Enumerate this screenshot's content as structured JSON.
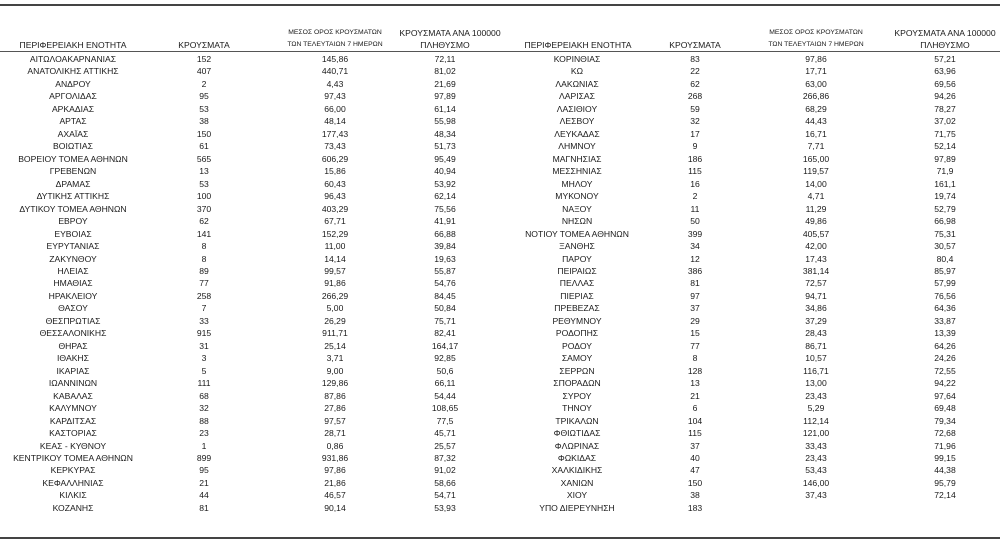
{
  "headers": {
    "region": "ΠΕΡΙΦΕΡΕΙΑΚΗ ΕΝΟΤΗΤΑ",
    "cases": "ΚΡΟΥΣΜΑΤΑ",
    "avg_line1": "ΜΕΣΟΣ ΟΡΟΣ ΚΡΟΥΣΜΑΤΩΝ",
    "avg_line2": "ΤΩΝ ΤΕΛΕΥΤΑΙΩΝ 7 ΗΜΕΡΩΝ",
    "per100k_line1": "ΚΡΟΥΣΜΑΤΑ ΑΝΑ 100000",
    "per100k_line2": "ΠΛΗΘΥΣΜΟ"
  },
  "left_rows": [
    [
      "ΑΙΤΩΛΟΑΚΑΡΝΑΝΙΑΣ",
      "152",
      "145,86",
      "72,11"
    ],
    [
      "ΑΝΑΤΟΛΙΚΗΣ ΑΤΤΙΚΗΣ",
      "407",
      "440,71",
      "81,02"
    ],
    [
      "ΑΝΔΡΟΥ",
      "2",
      "4,43",
      "21,69"
    ],
    [
      "ΑΡΓΟΛΙΔΑΣ",
      "95",
      "97,43",
      "97,89"
    ],
    [
      "ΑΡΚΑΔΙΑΣ",
      "53",
      "66,00",
      "61,14"
    ],
    [
      "ΑΡΤΑΣ",
      "38",
      "48,14",
      "55,98"
    ],
    [
      "ΑΧΑΪΑΣ",
      "150",
      "177,43",
      "48,34"
    ],
    [
      "ΒΟΙΩΤΙΑΣ",
      "61",
      "73,43",
      "51,73"
    ],
    [
      "ΒΟΡΕΙΟΥ ΤΟΜΕΑ ΑΘΗΝΩΝ",
      "565",
      "606,29",
      "95,49"
    ],
    [
      "ΓΡΕΒΕΝΩΝ",
      "13",
      "15,86",
      "40,94"
    ],
    [
      "ΔΡΑΜΑΣ",
      "53",
      "60,43",
      "53,92"
    ],
    [
      "ΔΥΤΙΚΗΣ ΑΤΤΙΚΗΣ",
      "100",
      "96,43",
      "62,14"
    ],
    [
      "ΔΥΤΙΚΟΥ ΤΟΜΕΑ ΑΘΗΝΩΝ",
      "370",
      "403,29",
      "75,56"
    ],
    [
      "ΕΒΡΟΥ",
      "62",
      "67,71",
      "41,91"
    ],
    [
      "ΕΥΒΟΙΑΣ",
      "141",
      "152,29",
      "66,88"
    ],
    [
      "ΕΥΡΥΤΑΝΙΑΣ",
      "8",
      "11,00",
      "39,84"
    ],
    [
      "ΖΑΚΥΝΘΟΥ",
      "8",
      "14,14",
      "19,63"
    ],
    [
      "ΗΛΕΙΑΣ",
      "89",
      "99,57",
      "55,87"
    ],
    [
      "ΗΜΑΘΙΑΣ",
      "77",
      "91,86",
      "54,76"
    ],
    [
      "ΗΡΑΚΛΕΙΟΥ",
      "258",
      "266,29",
      "84,45"
    ],
    [
      "ΘΑΣΟΥ",
      "7",
      "5,00",
      "50,84"
    ],
    [
      "ΘΕΣΠΡΩΤΙΑΣ",
      "33",
      "26,29",
      "75,71"
    ],
    [
      "ΘΕΣΣΑΛΟΝΙΚΗΣ",
      "915",
      "911,71",
      "82,41"
    ],
    [
      "ΘΗΡΑΣ",
      "31",
      "25,14",
      "164,17"
    ],
    [
      "ΙΘΑΚΗΣ",
      "3",
      "3,71",
      "92,85"
    ],
    [
      "ΙΚΑΡΙΑΣ",
      "5",
      "9,00",
      "50,6"
    ],
    [
      "ΙΩΑΝΝΙΝΩΝ",
      "111",
      "129,86",
      "66,11"
    ],
    [
      "ΚΑΒΑΛΑΣ",
      "68",
      "87,86",
      "54,44"
    ],
    [
      "ΚΑΛΥΜΝΟΥ",
      "32",
      "27,86",
      "108,65"
    ],
    [
      "ΚΑΡΔΙΤΣΑΣ",
      "88",
      "97,57",
      "77,5"
    ],
    [
      "ΚΑΣΤΟΡΙΑΣ",
      "23",
      "28,71",
      "45,71"
    ],
    [
      "ΚΕΑΣ - ΚΥΘΝΟΥ",
      "1",
      "0,86",
      "25,57"
    ],
    [
      "ΚΕΝΤΡΙΚΟΥ ΤΟΜΕΑ ΑΘΗΝΩΝ",
      "899",
      "931,86",
      "87,32"
    ],
    [
      "ΚΕΡΚΥΡΑΣ",
      "95",
      "97,86",
      "91,02"
    ],
    [
      "ΚΕΦΑΛΛΗΝΙΑΣ",
      "21",
      "21,86",
      "58,66"
    ],
    [
      "ΚΙΛΚΙΣ",
      "44",
      "46,57",
      "54,71"
    ],
    [
      "ΚΟΖΑΝΗΣ",
      "81",
      "90,14",
      "53,93"
    ]
  ],
  "right_rows": [
    [
      "ΚΟΡΙΝΘΙΑΣ",
      "83",
      "97,86",
      "57,21"
    ],
    [
      "ΚΩ",
      "22",
      "17,71",
      "63,96"
    ],
    [
      "ΛΑΚΩΝΙΑΣ",
      "62",
      "63,00",
      "69,56"
    ],
    [
      "ΛΑΡΙΣΑΣ",
      "268",
      "266,86",
      "94,26"
    ],
    [
      "ΛΑΣΙΘΙΟΥ",
      "59",
      "68,29",
      "78,27"
    ],
    [
      "ΛΕΣΒΟΥ",
      "32",
      "44,43",
      "37,02"
    ],
    [
      "ΛΕΥΚΑΔΑΣ",
      "17",
      "16,71",
      "71,75"
    ],
    [
      "ΛΗΜΝΟΥ",
      "9",
      "7,71",
      "52,14"
    ],
    [
      "ΜΑΓΝΗΣΙΑΣ",
      "186",
      "165,00",
      "97,89"
    ],
    [
      "ΜΕΣΣΗΝΙΑΣ",
      "115",
      "119,57",
      "71,9"
    ],
    [
      "ΜΗΛΟΥ",
      "16",
      "14,00",
      "161,1"
    ],
    [
      "ΜΥΚΟΝΟΥ",
      "2",
      "4,71",
      "19,74"
    ],
    [
      "ΝΑΞΟΥ",
      "11",
      "11,29",
      "52,79"
    ],
    [
      "ΝΗΣΩΝ",
      "50",
      "49,86",
      "66,98"
    ],
    [
      "ΝΟΤΙΟΥ ΤΟΜΕΑ ΑΘΗΝΩΝ",
      "399",
      "405,57",
      "75,31"
    ],
    [
      "ΞΑΝΘΗΣ",
      "34",
      "42,00",
      "30,57"
    ],
    [
      "ΠΑΡΟΥ",
      "12",
      "17,43",
      "80,4"
    ],
    [
      "ΠΕΙΡΑΙΩΣ",
      "386",
      "381,14",
      "85,97"
    ],
    [
      "ΠΕΛΛΑΣ",
      "81",
      "72,57",
      "57,99"
    ],
    [
      "ΠΙΕΡΙΑΣ",
      "97",
      "94,71",
      "76,56"
    ],
    [
      "ΠΡΕΒΕΖΑΣ",
      "37",
      "34,86",
      "64,36"
    ],
    [
      "ΡΕΘΥΜΝΟΥ",
      "29",
      "37,29",
      "33,87"
    ],
    [
      "ΡΟΔΟΠΗΣ",
      "15",
      "28,43",
      "13,39"
    ],
    [
      "ΡΟΔΟΥ",
      "77",
      "86,71",
      "64,26"
    ],
    [
      "ΣΑΜΟΥ",
      "8",
      "10,57",
      "24,26"
    ],
    [
      "ΣΕΡΡΩΝ",
      "128",
      "116,71",
      "72,55"
    ],
    [
      "ΣΠΟΡΑΔΩΝ",
      "13",
      "13,00",
      "94,22"
    ],
    [
      "ΣΥΡΟΥ",
      "21",
      "23,43",
      "97,64"
    ],
    [
      "ΤΗΝΟΥ",
      "6",
      "5,29",
      "69,48"
    ],
    [
      "ΤΡΙΚΑΛΩΝ",
      "104",
      "112,14",
      "79,34"
    ],
    [
      "ΦΘΙΩΤΙΔΑΣ",
      "115",
      "121,00",
      "72,68"
    ],
    [
      "ΦΛΩΡΙΝΑΣ",
      "37",
      "33,43",
      "71,96"
    ],
    [
      "ΦΩΚΙΔΑΣ",
      "40",
      "23,43",
      "99,15"
    ],
    [
      "ΧΑΛΚΙΔΙΚΗΣ",
      "47",
      "53,43",
      "44,38"
    ],
    [
      "ΧΑΝΙΩΝ",
      "150",
      "146,00",
      "95,79"
    ],
    [
      "ΧΙΟΥ",
      "38",
      "37,43",
      "72,14"
    ],
    [
      "ΥΠΟ ΔΙΕΡΕΥΝΗΣΗ",
      "183",
      "",
      ""
    ]
  ]
}
